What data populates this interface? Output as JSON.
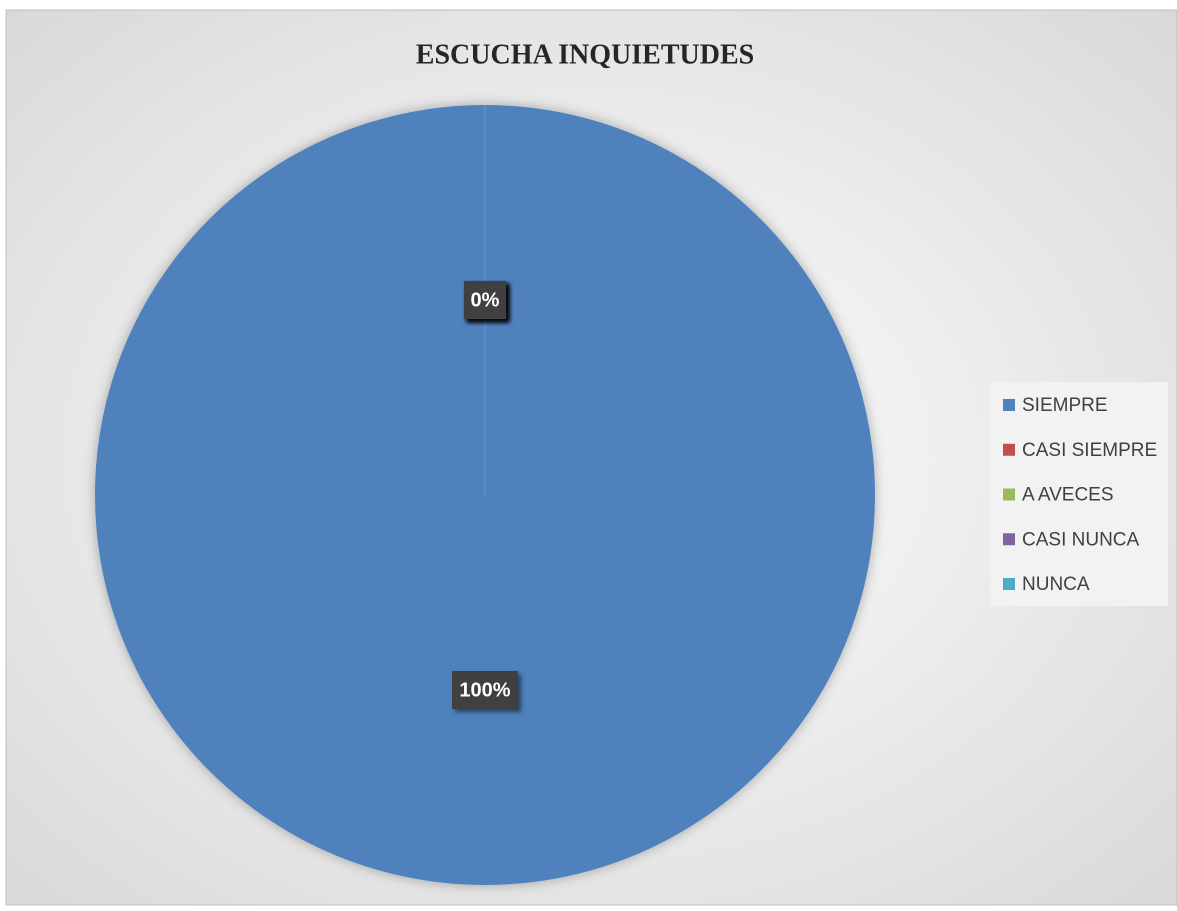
{
  "chart_data": {
    "type": "pie",
    "title": "ESCUCHA INQUIETUDES",
    "categories": [
      "SIEMPRE",
      "CASI SIEMPRE",
      "A AVECES",
      "CASI NUNCA",
      "NUNCA"
    ],
    "values": [
      100,
      0,
      0,
      0,
      0
    ],
    "value_labels": [
      "100%",
      "0%",
      "0%",
      "0%",
      "0%"
    ],
    "colors": [
      "#4f81bd",
      "#c0504d",
      "#9bbb59",
      "#8064a2",
      "#4bacc6"
    ],
    "legend": "right"
  }
}
